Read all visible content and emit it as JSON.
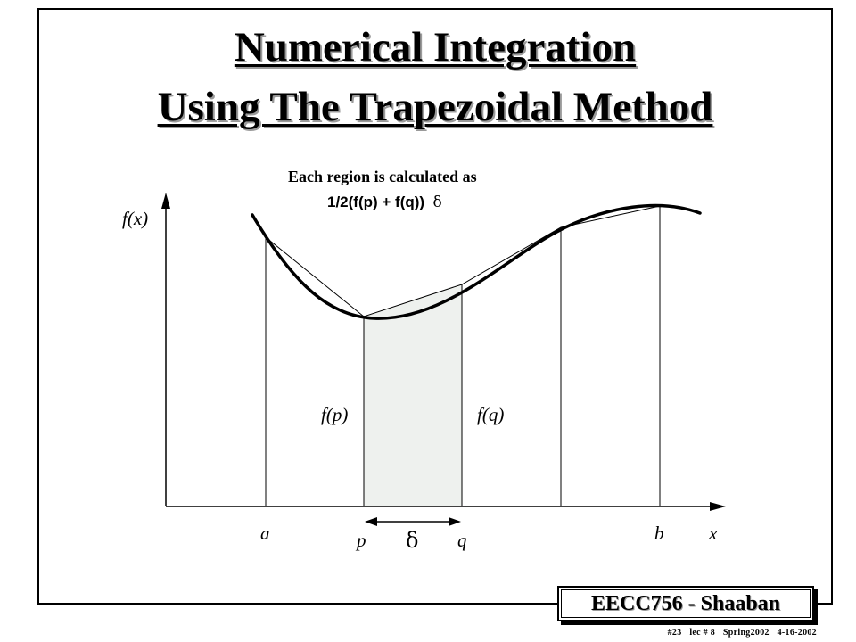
{
  "slide": {
    "title_line1": "Numerical Integration",
    "title_line2": "Using The Trapezoidal Method"
  },
  "caption": {
    "line1": "Each region is calculated as",
    "line2_prefix": "1/2(f(p) + f(q))",
    "line2_symbol": "δ"
  },
  "diagram": {
    "y_axis_label": "f(x)",
    "x_axis_label": "x",
    "point_labels": [
      "a",
      "p",
      "q",
      "b"
    ],
    "fp_label": "f(p)",
    "fq_label": "f(q)",
    "delta_label": "δ",
    "highlight_color": "#eef1ee",
    "stroke_color": "#000000"
  },
  "badge": {
    "text": "EECC756 - Shaaban"
  },
  "footer": {
    "slide_no": "#23",
    "lec": "lec # 8",
    "term": "Spring2002",
    "date": "4-16-2002"
  }
}
